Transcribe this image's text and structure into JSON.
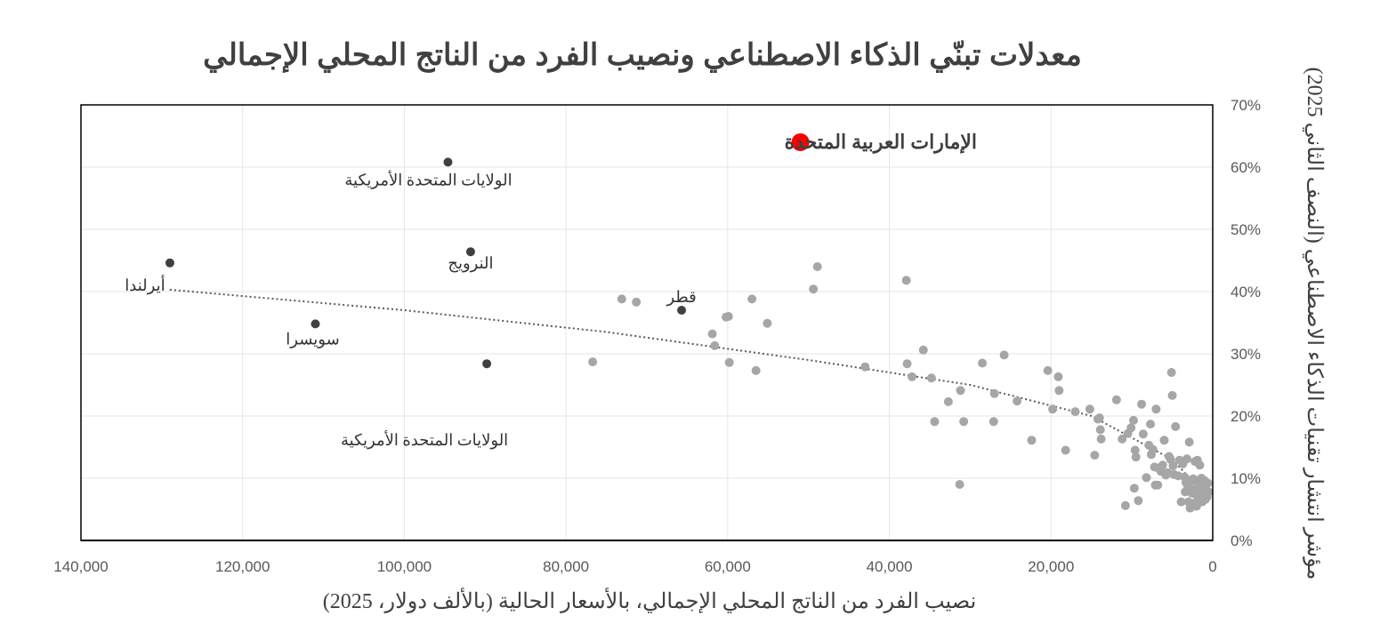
{
  "chart_data": {
    "type": "scatter",
    "title": "معدلات تبنّي الذكاء الاصطناعي ونصيب الفرد من الناتج المحلي الإجمالي",
    "xlabel": "نصيب الفرد من الناتج المحلي الإجمالي، بالأسعار الحالية (بالألف دولار، 2025)",
    "ylabel": "مؤشر انتشار تقنيات الذكاء الاصطناعي (النصف الثاني 2025)",
    "xlim": [
      0,
      140000
    ],
    "x_reversed": true,
    "ylim": [
      0,
      0.7
    ],
    "x_ticks": [
      140000,
      120000,
      100000,
      80000,
      60000,
      40000,
      20000,
      0
    ],
    "x_tick_labels": [
      "140,000",
      "120,000",
      "100,000",
      "80,000",
      "60,000",
      "40,000",
      "20,000",
      "0"
    ],
    "y_ticks": [
      0,
      0.1,
      0.2,
      0.3,
      0.4,
      0.5,
      0.6,
      0.7
    ],
    "y_tick_labels": [
      "0%",
      "10%",
      "20%",
      "30%",
      "40%",
      "50%",
      "60%",
      "70%"
    ],
    "grid": true,
    "y_axis_side": "right",
    "trendline": {
      "style": "dotted",
      "x": [
        129000,
        100000,
        75000,
        50000,
        30000,
        15000,
        5000,
        1000
      ],
      "y": [
        0.403,
        0.37,
        0.335,
        0.29,
        0.25,
        0.2,
        0.13,
        0.075
      ]
    },
    "highlight": {
      "label": "الإمارات العربية المتحدة",
      "x": 51000,
      "y": 0.64,
      "color": "#ff0000"
    },
    "labeled_points": [
      {
        "label": "الولايات المتحدة الأمريكية",
        "x": 94600,
        "y": 0.608
      },
      {
        "label": "أيرلندا",
        "x": 129000,
        "y": 0.446
      },
      {
        "label": "النرويج",
        "x": 91800,
        "y": 0.464
      },
      {
        "label": "قطر",
        "x": 65700,
        "y": 0.37
      },
      {
        "label": "سويسرا",
        "x": 111000,
        "y": 0.348
      },
      {
        "label": "الولايات المتحدة الأمريكية",
        "x": 89800,
        "y": 0.284
      }
    ],
    "points": [
      [
        76700,
        0.287
      ],
      [
        73100,
        0.388
      ],
      [
        71300,
        0.383
      ],
      [
        61900,
        0.332
      ],
      [
        61600,
        0.313
      ],
      [
        60200,
        0.359
      ],
      [
        59900,
        0.36
      ],
      [
        59800,
        0.286
      ],
      [
        57000,
        0.388
      ],
      [
        56500,
        0.273
      ],
      [
        55100,
        0.349
      ],
      [
        49400,
        0.404
      ],
      [
        48900,
        0.44
      ],
      [
        43000,
        0.279
      ],
      [
        37900,
        0.418
      ],
      [
        37800,
        0.284
      ],
      [
        37200,
        0.263
      ],
      [
        35800,
        0.306
      ],
      [
        34800,
        0.261
      ],
      [
        34400,
        0.191
      ],
      [
        32700,
        0.223
      ],
      [
        31200,
        0.241
      ],
      [
        31300,
        0.09
      ],
      [
        30800,
        0.191
      ],
      [
        28500,
        0.285
      ],
      [
        27000,
        0.236
      ],
      [
        27100,
        0.191
      ],
      [
        25800,
        0.298
      ],
      [
        24200,
        0.224
      ],
      [
        22400,
        0.161
      ],
      [
        20400,
        0.273
      ],
      [
        19800,
        0.211
      ],
      [
        19100,
        0.263
      ],
      [
        19000,
        0.241
      ],
      [
        18200,
        0.145
      ],
      [
        17000,
        0.207
      ],
      [
        15200,
        0.211
      ],
      [
        14600,
        0.137
      ],
      [
        14200,
        0.195
      ],
      [
        14000,
        0.197
      ],
      [
        13900,
        0.178
      ],
      [
        13800,
        0.163
      ],
      [
        11900,
        0.226
      ],
      [
        11200,
        0.163
      ],
      [
        10800,
        0.056
      ],
      [
        10500,
        0.172
      ],
      [
        10100,
        0.181
      ],
      [
        9800,
        0.193
      ],
      [
        9700,
        0.084
      ],
      [
        9600,
        0.145
      ],
      [
        9500,
        0.134
      ],
      [
        9200,
        0.064
      ],
      [
        8800,
        0.219
      ],
      [
        8600,
        0.171
      ],
      [
        8200,
        0.101
      ],
      [
        7900,
        0.153
      ],
      [
        7700,
        0.187
      ],
      [
        7600,
        0.138
      ],
      [
        7400,
        0.146
      ],
      [
        7200,
        0.118
      ],
      [
        7100,
        0.089
      ],
      [
        7000,
        0.211
      ],
      [
        6800,
        0.089
      ],
      [
        6700,
        0.116
      ],
      [
        6400,
        0.111
      ],
      [
        6200,
        0.121
      ],
      [
        6000,
        0.161
      ],
      [
        5800,
        0.105
      ],
      [
        5600,
        0.109
      ],
      [
        5400,
        0.135
      ],
      [
        5200,
        0.13
      ],
      [
        5100,
        0.27
      ],
      [
        5000,
        0.233
      ],
      [
        4900,
        0.12
      ],
      [
        4800,
        0.106
      ],
      [
        4600,
        0.183
      ],
      [
        4300,
        0.104
      ],
      [
        4100,
        0.129
      ],
      [
        3900,
        0.062
      ],
      [
        3700,
        0.123
      ],
      [
        3500,
        0.102
      ],
      [
        3400,
        0.078
      ],
      [
        3300,
        0.093
      ],
      [
        3200,
        0.131
      ],
      [
        3100,
        0.088
      ],
      [
        3000,
        0.062
      ],
      [
        2900,
        0.158
      ],
      [
        2800,
        0.052
      ],
      [
        2700,
        0.095
      ],
      [
        2600,
        0.076
      ],
      [
        2500,
        0.082
      ],
      [
        2400,
        0.099
      ],
      [
        2300,
        0.06
      ],
      [
        2200,
        0.127
      ],
      [
        2100,
        0.074
      ],
      [
        2000,
        0.055
      ],
      [
        1900,
        0.129
      ],
      [
        1800,
        0.092
      ],
      [
        1700,
        0.068
      ],
      [
        1600,
        0.121
      ],
      [
        1500,
        0.083
      ],
      [
        1400,
        0.1
      ],
      [
        1300,
        0.062
      ],
      [
        1200,
        0.087
      ],
      [
        1100,
        0.073
      ],
      [
        1000,
        0.096
      ],
      [
        900,
        0.066
      ],
      [
        800,
        0.081
      ],
      [
        700,
        0.07
      ],
      [
        600,
        0.092
      ],
      [
        500,
        0.078
      ]
    ],
    "colors": {
      "points": "#a6a6a6",
      "labeled_points": "#404040",
      "highlight": "#ff0000",
      "trendline": "#595959",
      "grid": "#e6e6e6",
      "axis": "#000000"
    }
  }
}
